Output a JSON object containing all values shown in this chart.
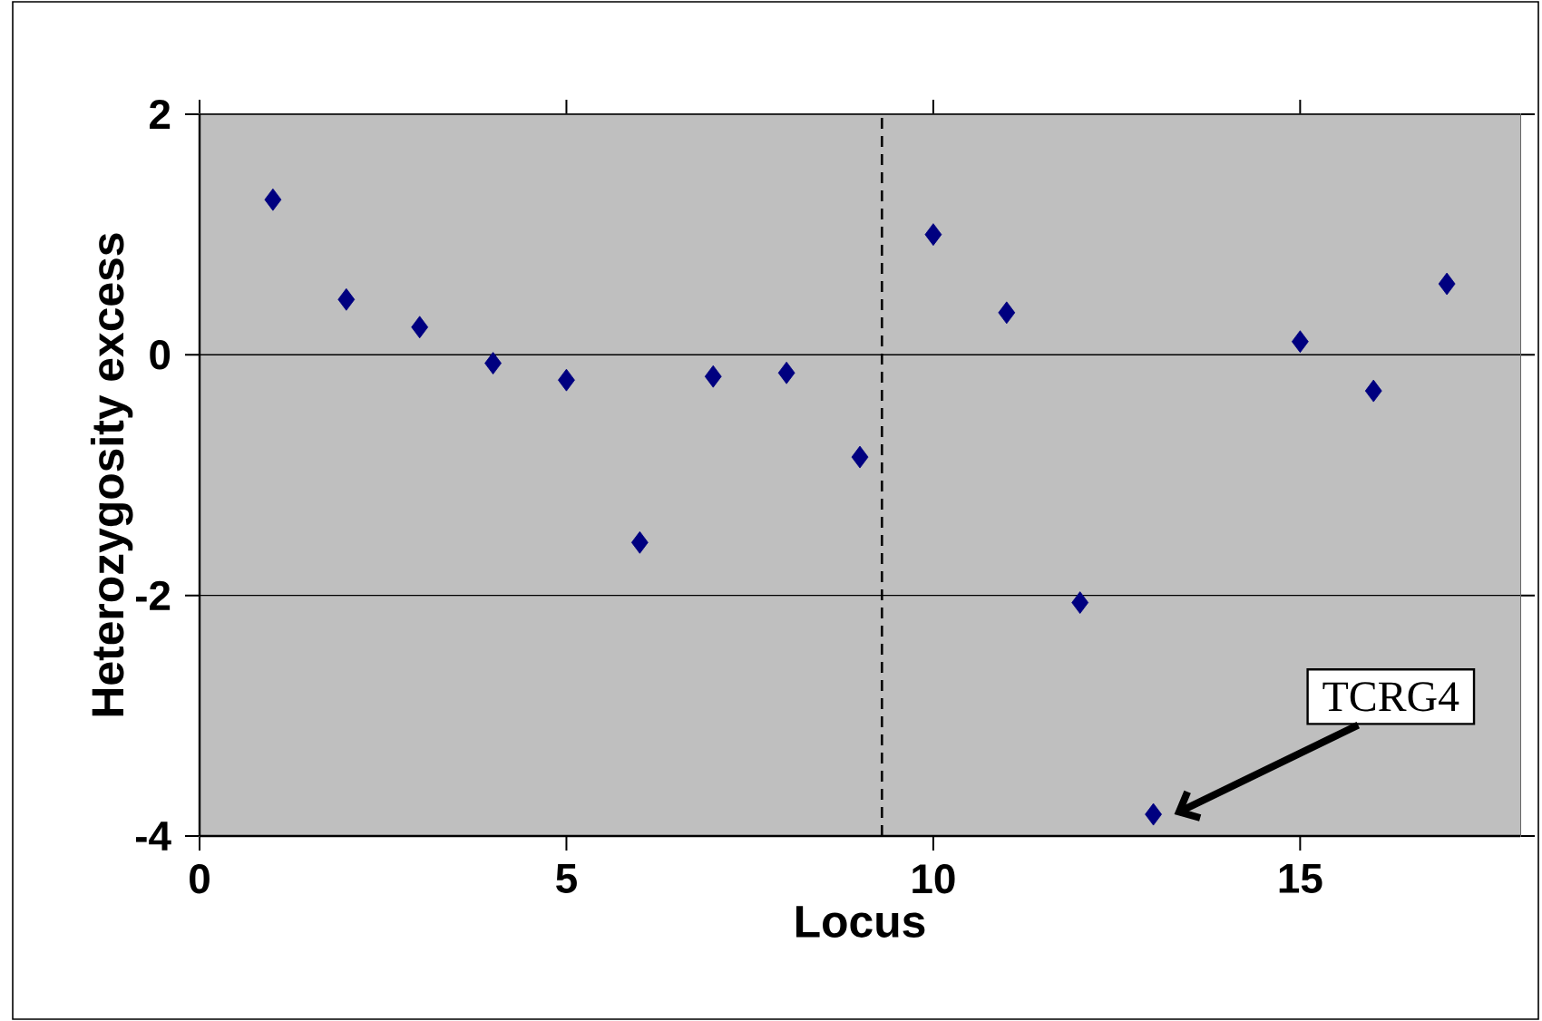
{
  "chart_data": {
    "type": "scatter",
    "xlabel": "Locus",
    "ylabel": "Heterozygosity excess",
    "x": [
      1,
      2,
      3,
      4,
      5,
      6,
      7,
      8,
      9,
      10,
      11,
      12,
      13,
      15,
      16,
      17
    ],
    "values": [
      1.29,
      0.46,
      0.23,
      -0.07,
      -0.21,
      -1.56,
      -0.18,
      -0.15,
      -0.85,
      1.0,
      0.35,
      -2.06,
      -3.82,
      0.11,
      -0.3,
      0.59
    ],
    "color": "#000080",
    "marker": "diamond",
    "xlim": [
      0,
      18
    ],
    "xticks": [
      0,
      5,
      10,
      15
    ],
    "ylim": [
      -4,
      2
    ],
    "yticks": [
      -4,
      -2,
      0,
      2
    ],
    "grid": "y",
    "ref_lines": [
      {
        "axis": "x",
        "value": 9.3,
        "color": "#000000",
        "line_style": "dashed"
      }
    ],
    "annotations": [
      "TCRG4"
    ]
  }
}
